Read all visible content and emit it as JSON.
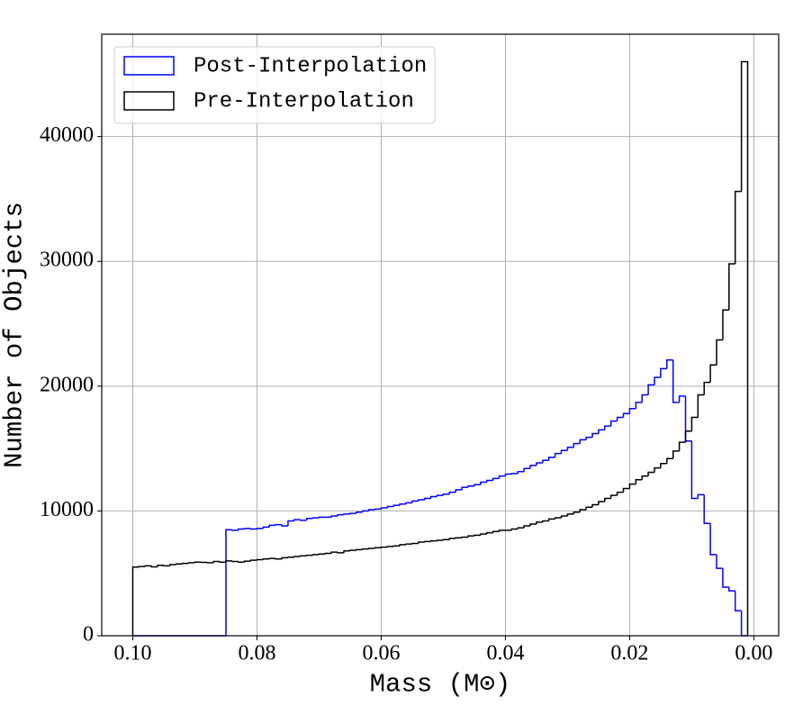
{
  "chart_data": {
    "type": "histogram",
    "xlabel": "Mass (M⊙)",
    "ylabel": "Number of Objects",
    "xlim": [
      0.105,
      -0.004
    ],
    "ylim": [
      0,
      48200
    ],
    "xticks": [
      {
        "value": 0.1,
        "label": "0.10"
      },
      {
        "value": 0.08,
        "label": "0.08"
      },
      {
        "value": 0.06,
        "label": "0.06"
      },
      {
        "value": 0.04,
        "label": "0.04"
      },
      {
        "value": 0.02,
        "label": "0.02"
      },
      {
        "value": 0,
        "label": "0.00"
      }
    ],
    "yticks": [
      0,
      10000,
      20000,
      30000,
      40000
    ],
    "grid": true,
    "legend": "upper left",
    "bins": [
      0.1,
      0.099,
      0.098,
      0.097,
      0.096,
      0.095,
      0.094,
      0.093,
      0.092,
      0.091,
      0.09,
      0.089,
      0.088,
      0.087,
      0.086,
      0.085,
      0.084,
      0.083,
      0.082,
      0.081,
      0.08,
      0.079,
      0.078,
      0.077,
      0.076,
      0.075,
      0.074,
      0.073,
      0.072,
      0.071,
      0.07,
      0.069,
      0.068,
      0.067,
      0.066,
      0.065,
      0.064,
      0.063,
      0.062,
      0.061,
      0.06,
      0.059,
      0.058,
      0.057,
      0.056,
      0.055,
      0.054,
      0.053,
      0.052,
      0.051,
      0.05,
      0.049,
      0.048,
      0.047,
      0.046,
      0.045,
      0.044,
      0.043,
      0.042,
      0.041,
      0.04,
      0.039,
      0.038,
      0.037,
      0.036,
      0.035,
      0.034,
      0.033,
      0.032,
      0.031,
      0.03,
      0.029,
      0.028,
      0.027,
      0.026,
      0.025,
      0.024,
      0.023,
      0.022,
      0.021,
      0.02,
      0.019,
      0.018,
      0.017,
      0.016,
      0.015,
      0.014,
      0.013,
      0.012,
      0.011,
      0.01,
      0.009,
      0.008,
      0.007,
      0.006,
      0.005,
      0.004,
      0.003,
      0.002,
      0.001
    ],
    "series": [
      {
        "name": "Post-Interpolation",
        "color": "#0000ff",
        "values": [
          0,
          0,
          0,
          0,
          0,
          0,
          0,
          0,
          0,
          0,
          0,
          0,
          0,
          0,
          0,
          8500,
          8450,
          8550,
          8600,
          8550,
          8600,
          8700,
          8850,
          8900,
          8800,
          9200,
          9300,
          9250,
          9400,
          9450,
          9500,
          9500,
          9600,
          9700,
          9750,
          9800,
          9900,
          10000,
          10100,
          10150,
          10250,
          10350,
          10450,
          10550,
          10650,
          10800,
          10900,
          11000,
          11150,
          11250,
          11350,
          11500,
          11700,
          11900,
          12000,
          12100,
          12300,
          12450,
          12600,
          12800,
          12950,
          13000,
          13150,
          13400,
          13650,
          13850,
          14050,
          14300,
          14600,
          14850,
          15100,
          15400,
          15700,
          15900,
          16200,
          16500,
          16800,
          17200,
          17500,
          17800,
          18200,
          18700,
          19300,
          20100,
          20700,
          21400,
          22100,
          18700,
          19200,
          15600,
          11000,
          11300,
          9000,
          6500,
          5400,
          3900,
          3600,
          2000,
          0
        ]
      },
      {
        "name": "Pre-Interpolation",
        "color": "#000000",
        "values": [
          5500,
          5550,
          5600,
          5520,
          5650,
          5600,
          5700,
          5750,
          5800,
          5850,
          5900,
          5880,
          5850,
          5950,
          5900,
          6000,
          5950,
          5900,
          5980,
          6050,
          6100,
          6150,
          6200,
          6150,
          6250,
          6300,
          6350,
          6400,
          6450,
          6500,
          6550,
          6600,
          6700,
          6650,
          6800,
          6850,
          6900,
          6950,
          7000,
          7050,
          7100,
          7150,
          7200,
          7300,
          7350,
          7400,
          7500,
          7550,
          7600,
          7650,
          7700,
          7800,
          7850,
          7900,
          8000,
          8050,
          8150,
          8250,
          8350,
          8450,
          8450,
          8550,
          8650,
          8800,
          8950,
          9100,
          9200,
          9350,
          9450,
          9600,
          9750,
          9900,
          10100,
          10300,
          10500,
          10750,
          11000,
          11250,
          11500,
          11800,
          12150,
          12500,
          12800,
          13100,
          13450,
          13800,
          14200,
          14800,
          15500,
          16400,
          17500,
          19300,
          20300,
          21700,
          23700,
          26100,
          29800,
          35600,
          46000
        ]
      }
    ]
  }
}
